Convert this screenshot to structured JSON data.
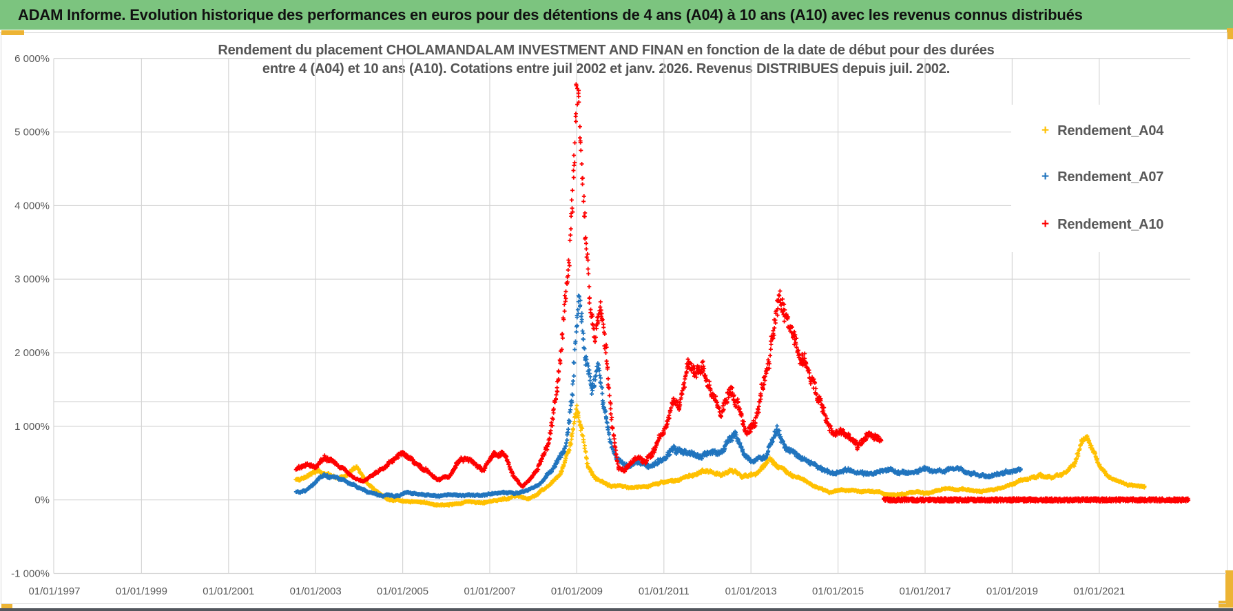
{
  "header": {
    "title": "ADAM Informe. Evolution historique des performances en euros pour des détentions de 4 ans (A04) à 10 ans (A10) avec les revenus connus distribués",
    "background_color": "#7CC47F",
    "accent_color": "#EDB434"
  },
  "chart_data": {
    "type": "scatter",
    "marker": "+",
    "title_line1": "Rendement du placement CHOLAMANDALAM INVESTMENT AND FINAN en fonction de la date de début pour des durées",
    "title_line2": "entre 4 (A04) et 10 ans (A10).  Cotations entre juil 2002 et janv. 2026. Revenus DISTRIBUES depuis juil. 2002.",
    "ylim": [
      -1000,
      6000
    ],
    "ytick_values": [
      6000,
      5000,
      4000,
      3000,
      2000,
      1000,
      0,
      -1000
    ],
    "ytick_labels": [
      "6 000%",
      "5 000%",
      "4 000%",
      "3 000%",
      "2 000%",
      "1 000%",
      "0%",
      "-1 000%"
    ],
    "xtick_years": [
      1997,
      1999,
      2001,
      2003,
      2005,
      2007,
      2009,
      2011,
      2013,
      2015,
      2017,
      2019,
      2021
    ],
    "xtick_labels": [
      "01/01/1997",
      "01/01/1999",
      "01/01/2001",
      "01/01/2003",
      "01/01/2005",
      "01/01/2007",
      "01/01/2009",
      "01/01/2011",
      "01/01/2013",
      "01/01/2015",
      "01/01/2017",
      "01/01/2019",
      "01/01/2021"
    ],
    "grid_color": "#D6D6D6",
    "grid_on": true,
    "extra_gridline_value": 1335,
    "legend_position": "right-inside",
    "legend": [
      {
        "name": "Rendement_A04",
        "color": "#FFC000"
      },
      {
        "name": "Rendement_A07",
        "color": "#2074BE"
      },
      {
        "name": "Rendement_A10",
        "color": "#FE0000"
      }
    ],
    "series": [
      {
        "name": "Rendement_A04",
        "color": "#FFC000",
        "anchors": [
          [
            2002.55,
            290
          ],
          [
            2002.75,
            320
          ],
          [
            2003.05,
            400
          ],
          [
            2003.2,
            360
          ],
          [
            2003.5,
            290
          ],
          [
            2003.75,
            340
          ],
          [
            2003.95,
            420
          ],
          [
            2004.15,
            230
          ],
          [
            2004.45,
            80
          ],
          [
            2004.7,
            -20
          ],
          [
            2005.0,
            -10
          ],
          [
            2005.3,
            -40
          ],
          [
            2005.7,
            -55
          ],
          [
            2006.1,
            -50
          ],
          [
            2006.5,
            -20
          ],
          [
            2006.9,
            -40
          ],
          [
            2007.3,
            0
          ],
          [
            2007.6,
            40
          ],
          [
            2007.9,
            30
          ],
          [
            2008.1,
            90
          ],
          [
            2008.4,
            200
          ],
          [
            2008.65,
            380
          ],
          [
            2008.85,
            720
          ],
          [
            2009.0,
            1200
          ],
          [
            2009.1,
            950
          ],
          [
            2009.25,
            520
          ],
          [
            2009.4,
            330
          ],
          [
            2009.6,
            260
          ],
          [
            2009.8,
            190
          ],
          [
            2010.0,
            210
          ],
          [
            2010.3,
            160
          ],
          [
            2010.6,
            180
          ],
          [
            2010.9,
            220
          ],
          [
            2011.2,
            260
          ],
          [
            2011.5,
            330
          ],
          [
            2011.8,
            390
          ],
          [
            2012.0,
            430
          ],
          [
            2012.3,
            370
          ],
          [
            2012.55,
            430
          ],
          [
            2012.8,
            340
          ],
          [
            2013.1,
            380
          ],
          [
            2013.4,
            520
          ],
          [
            2013.6,
            450
          ],
          [
            2013.9,
            330
          ],
          [
            2014.2,
            260
          ],
          [
            2014.5,
            160
          ],
          [
            2014.8,
            110
          ],
          [
            2015.1,
            140
          ],
          [
            2015.5,
            100
          ],
          [
            2015.9,
            120
          ],
          [
            2016.3,
            70
          ],
          [
            2016.7,
            110
          ],
          [
            2017.1,
            90
          ],
          [
            2017.5,
            140
          ],
          [
            2017.9,
            160
          ],
          [
            2018.3,
            120
          ],
          [
            2018.7,
            170
          ],
          [
            2019.0,
            230
          ],
          [
            2019.3,
            300
          ],
          [
            2019.6,
            340
          ],
          [
            2019.9,
            290
          ],
          [
            2020.2,
            350
          ],
          [
            2020.45,
            500
          ],
          [
            2020.6,
            800
          ],
          [
            2020.7,
            840
          ],
          [
            2020.85,
            640
          ],
          [
            2021.0,
            430
          ],
          [
            2021.2,
            300
          ],
          [
            2021.45,
            230
          ],
          [
            2021.7,
            190
          ],
          [
            2021.95,
            170
          ],
          [
            2022.05,
            160
          ]
        ]
      },
      {
        "name": "Rendement_A07",
        "color": "#2074BE",
        "anchors": [
          [
            2002.55,
            110
          ],
          [
            2002.8,
            140
          ],
          [
            2003.0,
            230
          ],
          [
            2003.2,
            340
          ],
          [
            2003.45,
            290
          ],
          [
            2003.7,
            240
          ],
          [
            2003.95,
            190
          ],
          [
            2004.2,
            120
          ],
          [
            2004.5,
            70
          ],
          [
            2004.8,
            60
          ],
          [
            2005.1,
            90
          ],
          [
            2005.4,
            60
          ],
          [
            2005.8,
            40
          ],
          [
            2006.2,
            60
          ],
          [
            2006.6,
            50
          ],
          [
            2007.0,
            80
          ],
          [
            2007.3,
            120
          ],
          [
            2007.6,
            90
          ],
          [
            2007.9,
            150
          ],
          [
            2008.2,
            240
          ],
          [
            2008.5,
            430
          ],
          [
            2008.75,
            800
          ],
          [
            2008.9,
            1400
          ],
          [
            2009.0,
            2300
          ],
          [
            2009.07,
            2680
          ],
          [
            2009.2,
            1950
          ],
          [
            2009.35,
            1450
          ],
          [
            2009.5,
            1800
          ],
          [
            2009.6,
            1300
          ],
          [
            2009.75,
            800
          ],
          [
            2009.9,
            520
          ],
          [
            2010.1,
            480
          ],
          [
            2010.4,
            560
          ],
          [
            2010.7,
            480
          ],
          [
            2011.0,
            610
          ],
          [
            2011.2,
            730
          ],
          [
            2011.5,
            620
          ],
          [
            2011.8,
            560
          ],
          [
            2012.1,
            640
          ],
          [
            2012.4,
            730
          ],
          [
            2012.6,
            900
          ],
          [
            2012.85,
            560
          ],
          [
            2013.05,
            480
          ],
          [
            2013.35,
            620
          ],
          [
            2013.6,
            1030
          ],
          [
            2013.8,
            720
          ],
          [
            2014.05,
            560
          ],
          [
            2014.35,
            470
          ],
          [
            2014.65,
            420
          ],
          [
            2014.95,
            380
          ],
          [
            2015.25,
            430
          ],
          [
            2015.55,
            380
          ],
          [
            2015.85,
            350
          ],
          [
            2016.2,
            390
          ],
          [
            2016.6,
            350
          ],
          [
            2017.0,
            410
          ],
          [
            2017.4,
            380
          ],
          [
            2017.8,
            430
          ],
          [
            2018.1,
            380
          ],
          [
            2018.45,
            340
          ],
          [
            2018.75,
            390
          ],
          [
            2019.0,
            420
          ],
          [
            2019.2,
            460
          ]
        ]
      },
      {
        "name": "Rendement_A10",
        "color": "#FE0000",
        "anchors": [
          [
            2002.55,
            430
          ],
          [
            2002.8,
            510
          ],
          [
            2003.0,
            450
          ],
          [
            2003.2,
            590
          ],
          [
            2003.4,
            540
          ],
          [
            2003.6,
            420
          ],
          [
            2003.85,
            280
          ],
          [
            2004.1,
            230
          ],
          [
            2004.35,
            330
          ],
          [
            2004.6,
            430
          ],
          [
            2004.85,
            540
          ],
          [
            2005.05,
            600
          ],
          [
            2005.3,
            520
          ],
          [
            2005.55,
            430
          ],
          [
            2005.8,
            300
          ],
          [
            2006.05,
            330
          ],
          [
            2006.35,
            560
          ],
          [
            2006.6,
            540
          ],
          [
            2006.85,
            420
          ],
          [
            2007.1,
            650
          ],
          [
            2007.3,
            640
          ],
          [
            2007.55,
            300
          ],
          [
            2007.75,
            170
          ],
          [
            2007.95,
            300
          ],
          [
            2008.15,
            480
          ],
          [
            2008.35,
            750
          ],
          [
            2008.55,
            1400
          ],
          [
            2008.7,
            2400
          ],
          [
            2008.82,
            3200
          ],
          [
            2008.92,
            4200
          ],
          [
            2009.0,
            5350
          ],
          [
            2009.08,
            4600
          ],
          [
            2009.18,
            3500
          ],
          [
            2009.3,
            2600
          ],
          [
            2009.42,
            2150
          ],
          [
            2009.55,
            2500
          ],
          [
            2009.68,
            1900
          ],
          [
            2009.8,
            1100
          ],
          [
            2009.95,
            480
          ],
          [
            2010.1,
            430
          ],
          [
            2010.35,
            620
          ],
          [
            2010.6,
            560
          ],
          [
            2010.8,
            740
          ],
          [
            2011.0,
            950
          ],
          [
            2011.2,
            1300
          ],
          [
            2011.35,
            1150
          ],
          [
            2011.55,
            1850
          ],
          [
            2011.7,
            1600
          ],
          [
            2011.9,
            1700
          ],
          [
            2012.1,
            1480
          ],
          [
            2012.3,
            1230
          ],
          [
            2012.5,
            1600
          ],
          [
            2012.7,
            1380
          ],
          [
            2012.9,
            960
          ],
          [
            2013.1,
            1150
          ],
          [
            2013.3,
            1700
          ],
          [
            2013.5,
            2200
          ],
          [
            2013.65,
            2660
          ],
          [
            2013.8,
            2400
          ],
          [
            2014.0,
            2050
          ],
          [
            2014.2,
            1800
          ],
          [
            2014.45,
            1450
          ],
          [
            2014.7,
            1150
          ],
          [
            2014.95,
            950
          ],
          [
            2015.2,
            820
          ],
          [
            2015.45,
            700
          ],
          [
            2015.65,
            880
          ],
          [
            2015.85,
            820
          ],
          [
            2016.0,
            760
          ]
        ],
        "flat_segment": {
          "value": 0,
          "from": 2016.05,
          "to": 2023.05
        }
      }
    ]
  }
}
